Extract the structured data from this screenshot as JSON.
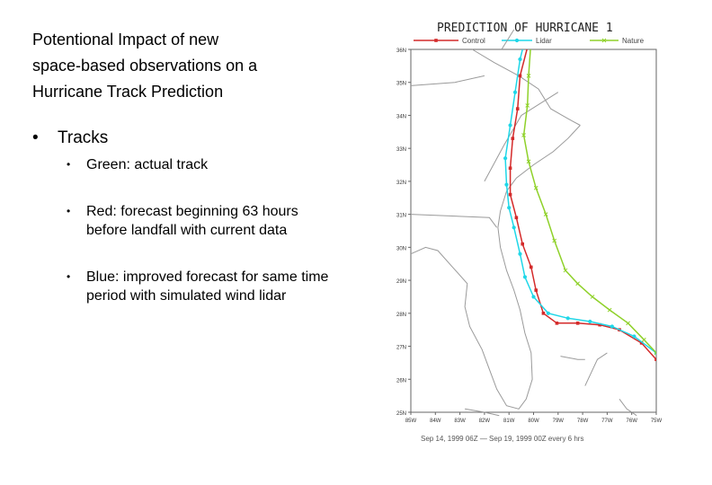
{
  "slide": {
    "title_lines": [
      "Potentional Impact of new",
      "space-based observations on a",
      "Hurricane Track Prediction"
    ],
    "bullet": "Tracks",
    "sub_bullets": [
      {
        "lines": [
          "Green: actual track"
        ]
      },
      {
        "lines": [
          "Red: forecast beginning 63 hours",
          "before landfall with current data"
        ]
      },
      {
        "lines": [
          "Blue: improved forecast for same time",
          "period with simulated wind lidar"
        ]
      }
    ],
    "bullet_glyph": "•"
  },
  "chart_data": {
    "type": "line",
    "title": "PREDICTION OF HURRICANE 1",
    "caption": "Sep 14, 1999 06Z  —  Sep 19, 1999 00Z every 6 hrs",
    "xlim": [
      -85,
      -75
    ],
    "ylim": [
      25,
      36
    ],
    "x_ticks": [
      "85W",
      "84W",
      "83W",
      "82W",
      "81W",
      "80W",
      "79W",
      "78W",
      "77W",
      "76W",
      "75W"
    ],
    "y_ticks": [
      "25N",
      "26N",
      "27N",
      "28N",
      "29N",
      "30N",
      "31N",
      "32N",
      "33N",
      "34N",
      "35N",
      "36N"
    ],
    "series": [
      {
        "name": "Control",
        "color": "#d42a2a",
        "marker": "square",
        "points": [
          [
            -80.2,
            36.2
          ],
          [
            -80.55,
            35.2
          ],
          [
            -80.65,
            34.2
          ],
          [
            -80.85,
            33.3
          ],
          [
            -80.95,
            32.4
          ],
          [
            -80.95,
            31.6
          ],
          [
            -80.7,
            30.9
          ],
          [
            -80.45,
            30.1
          ],
          [
            -80.1,
            29.4
          ],
          [
            -79.9,
            28.7
          ],
          [
            -79.6,
            28.0
          ],
          [
            -79.05,
            27.7
          ],
          [
            -78.2,
            27.7
          ],
          [
            -77.3,
            27.65
          ],
          [
            -76.5,
            27.5
          ],
          [
            -75.6,
            27.1
          ],
          [
            -75.0,
            26.6
          ]
        ]
      },
      {
        "name": "Lidar",
        "color": "#1fd7e8",
        "marker": "circle",
        "points": [
          [
            -80.25,
            36.6
          ],
          [
            -80.55,
            35.7
          ],
          [
            -80.75,
            34.7
          ],
          [
            -80.95,
            33.7
          ],
          [
            -81.15,
            32.7
          ],
          [
            -81.1,
            31.9
          ],
          [
            -81.0,
            31.2
          ],
          [
            -80.8,
            30.6
          ],
          [
            -80.55,
            29.8
          ],
          [
            -80.35,
            29.1
          ],
          [
            -80.0,
            28.5
          ],
          [
            -79.4,
            28.0
          ],
          [
            -78.6,
            27.85
          ],
          [
            -77.7,
            27.75
          ],
          [
            -76.8,
            27.6
          ],
          [
            -75.9,
            27.3
          ],
          [
            -75.0,
            26.8
          ]
        ]
      },
      {
        "name": "Nature",
        "color": "#8fd12a",
        "marker": "x",
        "points": [
          [
            -80.1,
            36.3
          ],
          [
            -80.2,
            35.2
          ],
          [
            -80.25,
            34.3
          ],
          [
            -80.4,
            33.4
          ],
          [
            -80.2,
            32.6
          ],
          [
            -79.9,
            31.8
          ],
          [
            -79.5,
            31.0
          ],
          [
            -79.15,
            30.2
          ],
          [
            -78.7,
            29.3
          ],
          [
            -78.2,
            28.9
          ],
          [
            -77.6,
            28.5
          ],
          [
            -76.9,
            28.1
          ],
          [
            -76.15,
            27.7
          ],
          [
            -75.5,
            27.2
          ],
          [
            -75.0,
            26.8
          ]
        ]
      }
    ]
  }
}
